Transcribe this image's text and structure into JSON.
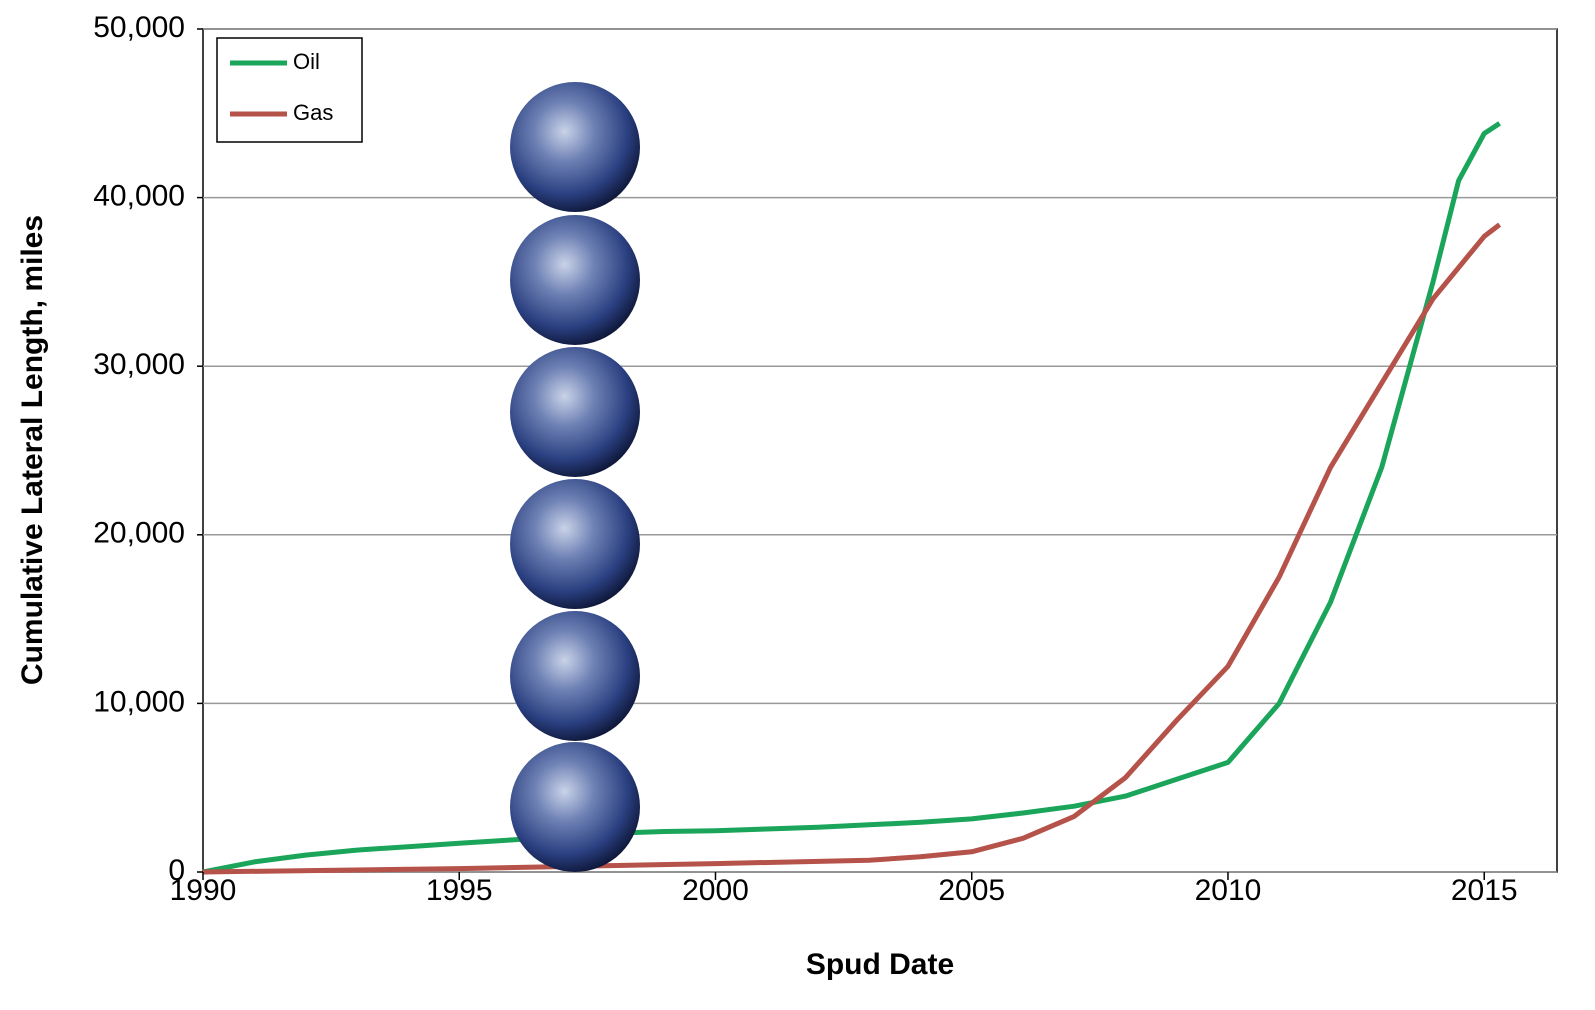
{
  "chart_data": {
    "type": "line",
    "x_label": "Spud Date",
    "y_label": "Cumulative Lateral Length, miles",
    "xlim": [
      1990,
      2016.42
    ],
    "ylim": [
      0,
      50000
    ],
    "xticks": [
      1990,
      1995,
      2000,
      2005,
      2010,
      2015
    ],
    "yticks": [
      0,
      {
        "value": 10000,
        "label": "10,000"
      },
      {
        "value": 20000,
        "label": "20,000"
      },
      {
        "value": 30000,
        "label": "30,000"
      },
      {
        "value": 40000,
        "label": "40,000"
      },
      {
        "value": 50000,
        "label": "50,000"
      }
    ],
    "grid": true,
    "legend": "upper left",
    "series": [
      {
        "name": "Oil",
        "color": "#1aa55a",
        "x": [
          1990,
          1991,
          1992,
          1993,
          1994,
          1995,
          1996,
          1997,
          1998,
          1999,
          2000,
          2001,
          2002,
          2003,
          2004,
          2005,
          2006,
          2007,
          2008,
          2009,
          2010,
          2011,
          2012,
          2013,
          2014,
          2014.5,
          2015,
          2015.3
        ],
        "values": [
          0,
          600,
          1000,
          1300,
          1500,
          1700,
          1900,
          2100,
          2300,
          2400,
          2450,
          2550,
          2650,
          2800,
          2950,
          3150,
          3500,
          3900,
          4500,
          5500,
          6500,
          10000,
          16000,
          24000,
          35000,
          41000,
          43800,
          44400
        ]
      },
      {
        "name": "Gas",
        "color": "#b5524a",
        "x": [
          1990,
          1995,
          2000,
          2003,
          2004,
          2005,
          2006,
          2007,
          2008,
          2009,
          2010,
          2011,
          2012,
          2013,
          2014,
          2015,
          2015.3
        ],
        "values": [
          0,
          200,
          500,
          700,
          900,
          1200,
          2000,
          3300,
          5600,
          9000,
          12200,
          17500,
          24000,
          29000,
          34000,
          37700,
          38400
        ]
      }
    ]
  }
}
